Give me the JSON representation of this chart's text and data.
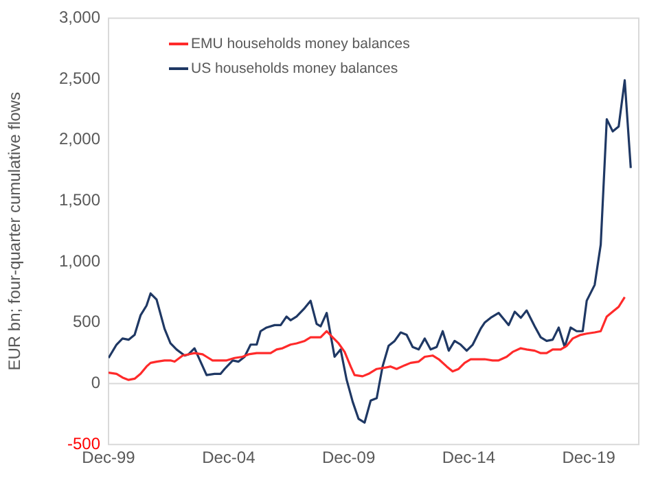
{
  "chart_data": {
    "type": "line",
    "ylabel": "EUR bn; four-quarter cumulative flows",
    "xlim": [
      "1999-12",
      "2022-01"
    ],
    "xticks": [
      {
        "value": "1999-12",
        "label": "Dec-99"
      },
      {
        "value": "2004-12",
        "label": "Dec-04"
      },
      {
        "value": "2009-12",
        "label": "Dec-09"
      },
      {
        "value": "2014-12",
        "label": "Dec-14"
      },
      {
        "value": "2019-12",
        "label": "Dec-19"
      }
    ],
    "ylim": [
      -500,
      3000
    ],
    "yticks": [
      {
        "value": -500,
        "label": "-500"
      },
      {
        "value": 0,
        "label": "0"
      },
      {
        "value": 500,
        "label": "500"
      },
      {
        "value": 1000,
        "label": "1,000"
      },
      {
        "value": 1500,
        "label": "1,500"
      },
      {
        "value": 2000,
        "label": "2,000"
      },
      {
        "value": 2500,
        "label": "2,500"
      },
      {
        "value": 3000,
        "label": "3,000"
      }
    ],
    "grid": false,
    "legend": "top left",
    "marker": "none",
    "line_style": "solid",
    "ref_lines": [
      {
        "axis": "y",
        "value": 0,
        "color": "#d9d9d9"
      }
    ],
    "series": [
      {
        "name": "EMU households money balances",
        "color": "#ff2a2a",
        "x": [
          "1999-12",
          "2000-04",
          "2000-07",
          "2000-10",
          "2001-01",
          "2001-04",
          "2001-07",
          "2001-09",
          "2001-12",
          "2002-04",
          "2002-07",
          "2002-09",
          "2003-01",
          "2003-04",
          "2003-07",
          "2003-11",
          "2004-01",
          "2004-04",
          "2004-08",
          "2004-11",
          "2005-03",
          "2005-07",
          "2005-10",
          "2006-02",
          "2006-05",
          "2006-09",
          "2006-12",
          "2007-03",
          "2007-07",
          "2007-10",
          "2008-02",
          "2008-05",
          "2008-10",
          "2009-01",
          "2009-04",
          "2009-07",
          "2009-10",
          "2010-01",
          "2010-03",
          "2010-07",
          "2010-10",
          "2011-02",
          "2011-06",
          "2011-09",
          "2011-12",
          "2012-04",
          "2012-07",
          "2012-11",
          "2013-02",
          "2013-06",
          "2013-09",
          "2014-01",
          "2014-04",
          "2014-07",
          "2014-10",
          "2015-01",
          "2015-05",
          "2015-08",
          "2015-12",
          "2016-03",
          "2016-07",
          "2016-10",
          "2017-02",
          "2017-05",
          "2017-09",
          "2017-12",
          "2018-03",
          "2018-06",
          "2018-10",
          "2019-01",
          "2019-04",
          "2019-08",
          "2019-11",
          "2020-03",
          "2020-06",
          "2020-09",
          "2020-12",
          "2021-03",
          "2021-06"
        ],
        "values": [
          90,
          80,
          50,
          30,
          40,
          80,
          140,
          170,
          180,
          190,
          190,
          180,
          230,
          240,
          250,
          240,
          220,
          190,
          190,
          190,
          210,
          220,
          240,
          250,
          250,
          250,
          280,
          290,
          320,
          330,
          350,
          380,
          380,
          430,
          380,
          330,
          260,
          140,
          70,
          60,
          80,
          120,
          130,
          140,
          120,
          150,
          170,
          180,
          220,
          230,
          200,
          140,
          100,
          120,
          170,
          200,
          200,
          200,
          190,
          190,
          220,
          260,
          290,
          280,
          270,
          250,
          250,
          280,
          280,
          310,
          370,
          400,
          410,
          420,
          430,
          550,
          590,
          630,
          710
        ]
      },
      {
        "name": "US households money balances",
        "color": "#1f3864",
        "x": [
          "1999-12",
          "2000-04",
          "2000-07",
          "2000-10",
          "2001-01",
          "2001-04",
          "2001-07",
          "2001-09",
          "2001-12",
          "2002-04",
          "2002-07",
          "2002-10",
          "2003-02",
          "2003-04",
          "2003-07",
          "2003-10",
          "2004-01",
          "2004-05",
          "2004-08",
          "2004-10",
          "2005-02",
          "2005-05",
          "2005-08",
          "2005-11",
          "2006-02",
          "2006-04",
          "2006-07",
          "2006-11",
          "2007-02",
          "2007-05",
          "2007-07",
          "2007-10",
          "2008-02",
          "2008-05",
          "2008-08",
          "2008-10",
          "2009-01",
          "2009-05",
          "2009-08",
          "2009-11",
          "2010-02",
          "2010-05",
          "2010-08",
          "2010-11",
          "2011-02",
          "2011-05",
          "2011-08",
          "2011-11",
          "2012-02",
          "2012-05",
          "2012-08",
          "2012-11",
          "2013-02",
          "2013-05",
          "2013-08",
          "2013-11",
          "2014-02",
          "2014-05",
          "2014-08",
          "2014-11",
          "2015-02",
          "2015-06",
          "2015-08",
          "2015-11",
          "2016-03",
          "2016-06",
          "2016-08",
          "2016-11",
          "2017-02",
          "2017-05",
          "2017-09",
          "2017-12",
          "2018-03",
          "2018-06",
          "2018-09",
          "2018-12",
          "2019-03",
          "2019-06",
          "2019-09",
          "2019-11",
          "2020-03",
          "2020-06",
          "2020-09",
          "2020-12",
          "2021-03",
          "2021-06",
          "2021-09"
        ],
        "values": [
          210,
          320,
          370,
          360,
          400,
          560,
          640,
          740,
          690,
          450,
          330,
          280,
          230,
          240,
          290,
          180,
          70,
          80,
          80,
          120,
          190,
          180,
          220,
          320,
          320,
          430,
          460,
          480,
          480,
          550,
          520,
          550,
          620,
          680,
          490,
          470,
          580,
          220,
          280,
          30,
          -150,
          -290,
          -320,
          -140,
          -120,
          140,
          310,
          350,
          420,
          400,
          300,
          280,
          370,
          280,
          300,
          430,
          270,
          350,
          320,
          270,
          320,
          450,
          500,
          540,
          580,
          520,
          480,
          590,
          540,
          600,
          470,
          380,
          350,
          360,
          460,
          300,
          460,
          430,
          430,
          680,
          810,
          1140,
          2170,
          2070,
          2110,
          2490,
          1770
        ]
      }
    ]
  }
}
